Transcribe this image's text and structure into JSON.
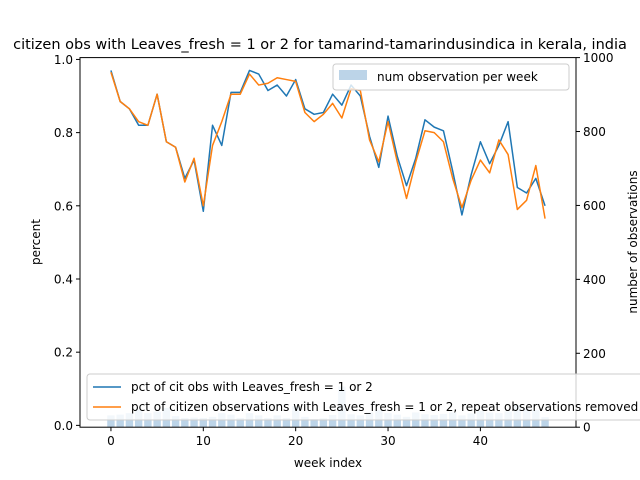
{
  "chart_data": {
    "type": "line",
    "title": "citizen obs with Leaves_fresh = 1 or 2 for tamarind-tamarindusindica in kerala, india",
    "xlabel": "week index",
    "ylabel": "percent",
    "y2label": "number of observations",
    "xlim": [
      -3.35,
      50.35
    ],
    "ylim": [
      -0.005,
      1.005
    ],
    "y2lim": [
      0,
      1000
    ],
    "xticks": [
      0,
      10,
      20,
      30,
      40
    ],
    "yticks": [
      0.0,
      0.2,
      0.4,
      0.6,
      0.8,
      1.0
    ],
    "y2ticks": [
      0,
      200,
      400,
      600,
      800,
      1000
    ],
    "x": [
      0,
      1,
      2,
      3,
      4,
      5,
      6,
      7,
      8,
      9,
      10,
      11,
      12,
      13,
      14,
      15,
      16,
      17,
      18,
      19,
      20,
      21,
      22,
      23,
      24,
      25,
      26,
      27,
      28,
      29,
      30,
      31,
      32,
      33,
      34,
      35,
      36,
      37,
      38,
      39,
      40,
      41,
      42,
      43,
      44,
      45,
      46,
      47
    ],
    "series": [
      {
        "name": "pct of cit obs with Leaves_fresh = 1 or 2",
        "color": "#1f77b4",
        "values": [
          0.97,
          0.885,
          0.865,
          0.82,
          0.82,
          0.905,
          0.775,
          0.76,
          0.675,
          0.725,
          0.585,
          0.82,
          0.765,
          0.91,
          0.91,
          0.97,
          0.96,
          0.915,
          0.93,
          0.9,
          0.945,
          0.865,
          0.85,
          0.855,
          0.905,
          0.875,
          0.93,
          0.9,
          0.79,
          0.705,
          0.845,
          0.735,
          0.655,
          0.73,
          0.835,
          0.815,
          0.805,
          0.695,
          0.575,
          0.685,
          0.775,
          0.715,
          0.765,
          0.83,
          0.65,
          0.635,
          0.675,
          0.6
        ]
      },
      {
        "name": "pct of citizen observations with Leaves_fresh = 1 or 2, repeat observations removed",
        "color": "#ff7f0e",
        "values": [
          0.965,
          0.885,
          0.865,
          0.83,
          0.82,
          0.905,
          0.775,
          0.76,
          0.665,
          0.73,
          0.6,
          0.765,
          0.83,
          0.905,
          0.905,
          0.96,
          0.93,
          0.935,
          0.95,
          0.945,
          0.94,
          0.855,
          0.83,
          0.85,
          0.88,
          0.84,
          0.92,
          0.915,
          0.78,
          0.72,
          0.83,
          0.72,
          0.62,
          0.72,
          0.805,
          0.8,
          0.775,
          0.675,
          0.595,
          0.67,
          0.725,
          0.69,
          0.78,
          0.74,
          0.59,
          0.615,
          0.71,
          0.565
        ]
      }
    ],
    "bar_series": {
      "name": "num observation per week",
      "color": "#bcd4e8",
      "values": [
        32,
        34,
        38,
        48,
        38,
        42,
        52,
        30,
        25,
        26,
        25,
        28,
        38,
        34,
        25,
        38,
        32,
        25,
        32,
        25,
        57,
        28,
        22,
        24,
        33,
        110,
        35,
        32,
        40,
        46,
        38,
        34,
        28,
        40,
        35,
        33,
        36,
        40,
        32,
        37,
        44,
        40,
        38,
        43,
        60,
        50,
        46,
        27
      ]
    },
    "legends": {
      "upper_right": [
        "num observation per week"
      ],
      "lower_left": [
        "pct of cit obs with Leaves_fresh = 1 or 2",
        "pct of citizen observations with Leaves_fresh = 1 or 2, repeat observations removed"
      ]
    }
  }
}
